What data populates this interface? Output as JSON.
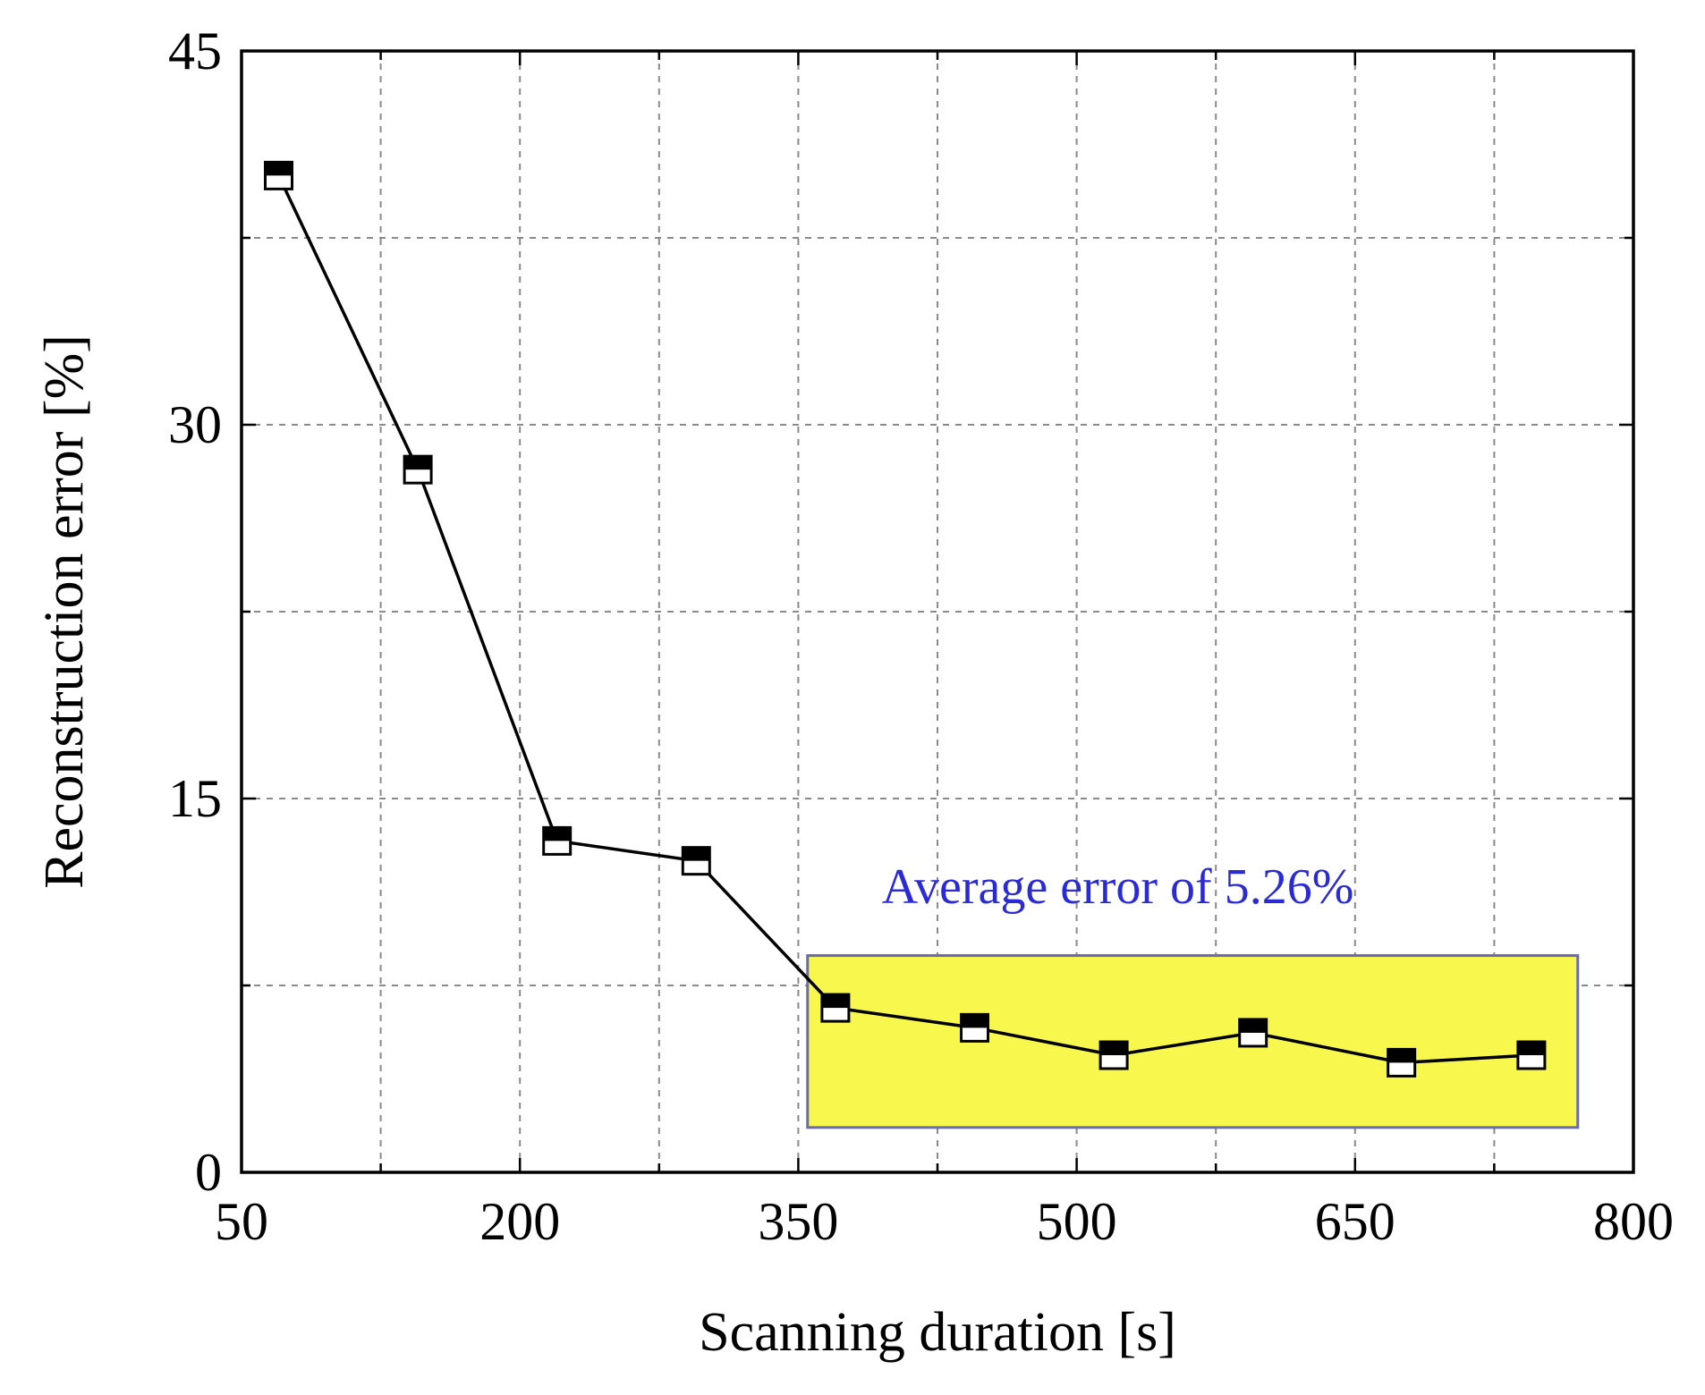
{
  "chart_data": {
    "type": "line",
    "xlabel": "Scanning duration [s]",
    "ylabel": "Reconstruction error [%]",
    "xlim": [
      50,
      800
    ],
    "ylim": [
      0,
      45
    ],
    "xticks": [
      50,
      200,
      350,
      500,
      650,
      800
    ],
    "yticks": [
      0,
      15,
      30,
      45
    ],
    "x_minor_grid": [
      125,
      275,
      425,
      575,
      725
    ],
    "y_minor_grid": [
      7.5,
      22.5,
      37.5
    ],
    "grid": true,
    "series": [
      {
        "name": "Reconstruction error",
        "marker": "half-filled square",
        "x": [
          70,
          145,
          220,
          295,
          370,
          445,
          520,
          595,
          675,
          745
        ],
        "y": [
          40.0,
          28.2,
          13.3,
          12.5,
          6.6,
          5.8,
          4.7,
          5.6,
          4.4,
          4.7
        ]
      }
    ],
    "highlight": {
      "x_range": [
        355,
        770
      ],
      "y_range": [
        1.8,
        8.7
      ],
      "color": "#f7f74d",
      "border_color": "#6a6ab0"
    },
    "annotation": {
      "text": "Average error of 5.26%",
      "x": 395,
      "y": 10.8,
      "color": "#2b2bd6"
    }
  }
}
